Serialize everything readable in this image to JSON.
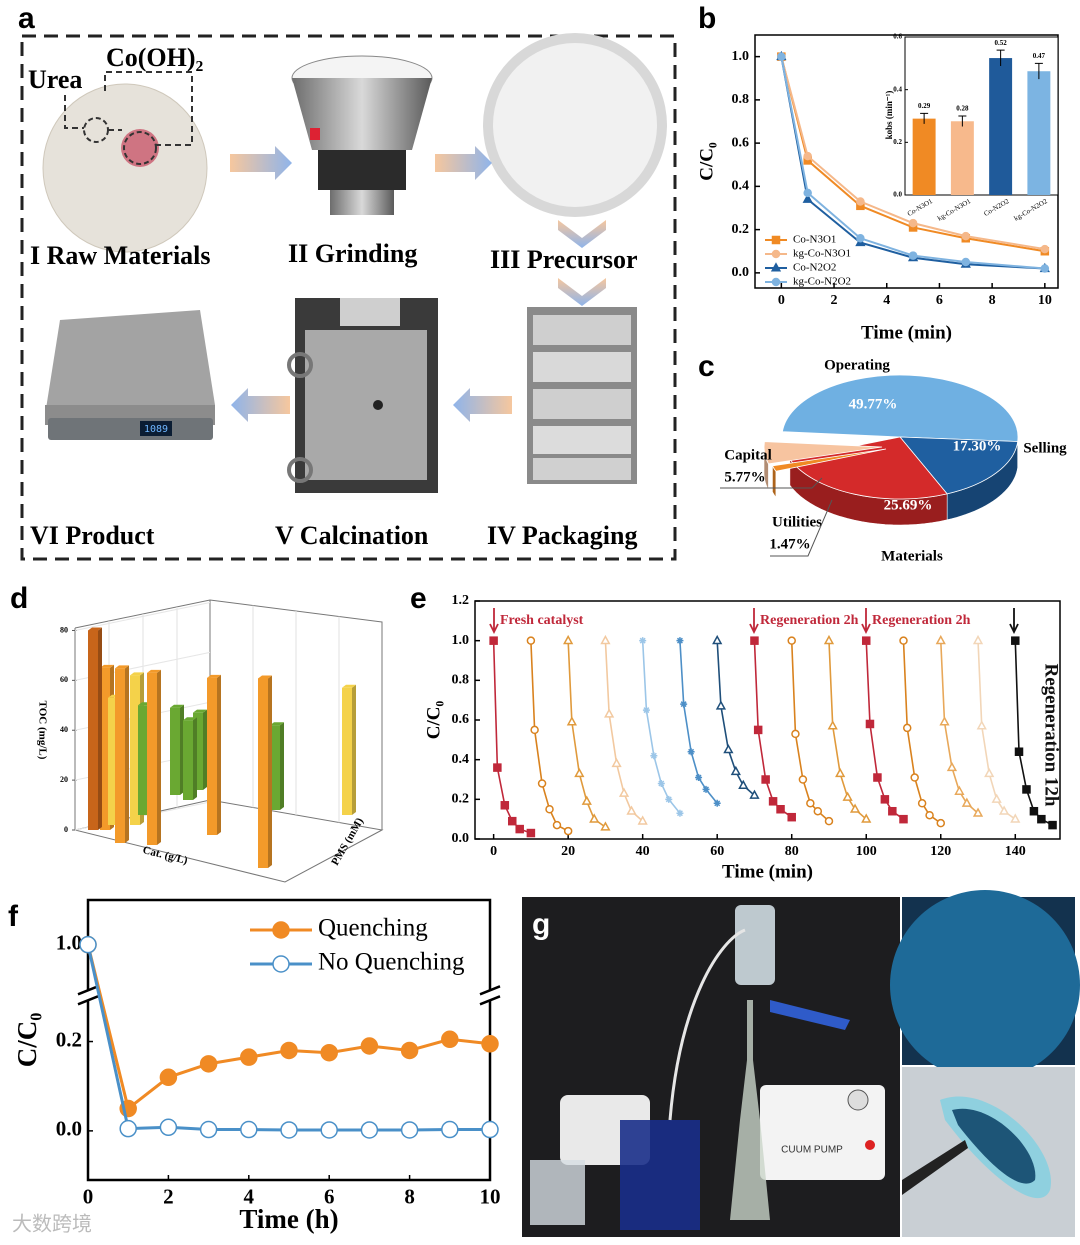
{
  "panel_labels": [
    "a",
    "b",
    "c",
    "d",
    "e",
    "f",
    "g"
  ],
  "panel_a": {
    "urea": "Urea",
    "cooh": "Co(OH)₂",
    "steps": [
      "I Raw Materials",
      "II Grinding",
      "III Precursor",
      "IV Packaging",
      "V Calcination",
      "VI Product"
    ],
    "scale_reading": "1089"
  },
  "panel_g": {
    "pump_label": "CUUM PUMP"
  },
  "watermark": "大数跨境",
  "chart_data": [
    {
      "type": "line",
      "x_label": "Time (min)",
      "y_label": "C/C₀",
      "x": [
        0,
        1,
        3,
        5,
        7,
        10
      ],
      "xlim": [
        -1,
        10.5
      ],
      "xticks": [
        0,
        2,
        4,
        6,
        8,
        10
      ],
      "ylim": [
        -0.07,
        1.1
      ],
      "yticks": [
        {
          "value": 0,
          "label": "0.0"
        },
        0.2,
        0.4,
        0.6,
        0.8,
        {
          "value": 1,
          "label": "1.0"
        }
      ],
      "legend": "lower left",
      "series": [
        {
          "name": "Co-N3O1",
          "color": "#f08a24",
          "marker": "square",
          "values": [
            1.0,
            0.52,
            0.31,
            0.21,
            0.16,
            0.1
          ]
        },
        {
          "name": "kg-Co-N3O1",
          "color": "#f5b88a",
          "marker": "circle",
          "values": [
            1.0,
            0.54,
            0.33,
            0.23,
            0.17,
            0.11
          ]
        },
        {
          "name": "Co-N2O2",
          "color": "#1f5fa0",
          "marker": "triangle",
          "values": [
            1.0,
            0.34,
            0.14,
            0.07,
            0.04,
            0.02
          ]
        },
        {
          "name": "kg-Co-N2O2",
          "color": "#7fb3e0",
          "marker": "circle",
          "values": [
            1.0,
            0.37,
            0.16,
            0.08,
            0.05,
            0.02
          ]
        }
      ]
    },
    {
      "type": "bar",
      "y_label": "kobs (min⁻¹)",
      "categories": [
        "Co-N3O1",
        "kg-Co-N3O1",
        "Co-N2O2",
        "kg-Co-N2O2"
      ],
      "values": [
        0.29,
        0.28,
        0.52,
        0.47
      ],
      "errors": [
        0.02,
        0.02,
        0.03,
        0.03
      ],
      "colors": [
        "#f08a24",
        "#f7b98c",
        "#1f5a9a",
        "#7cb4e2"
      ],
      "ylim": [
        0,
        0.6
      ],
      "yticks": [
        {
          "value": 0,
          "label": "0.0"
        },
        0.2,
        0.4,
        0.6
      ]
    },
    {
      "type": "pie",
      "categories": [
        "Operating",
        "Selling",
        "Materials",
        "Utilities",
        "Capital"
      ],
      "values": [
        49.77,
        17.3,
        25.69,
        1.47,
        5.77
      ],
      "value_labels": [
        "49.77%",
        "17.30%",
        "25.69%",
        "1.47%",
        "5.77%"
      ],
      "colors": [
        "#6fb0e2",
        "#1f5fa0",
        "#d42a2a",
        "#f08a24",
        "#f7c4a0"
      ]
    },
    {
      "type": "bar3d",
      "x_label": "Cat. (g/L)",
      "y_label": "PMS (mM)",
      "z_label": "TOC (mg/L)",
      "zlim": [
        0,
        85
      ],
      "zticks": [
        0,
        20,
        40,
        60,
        80
      ],
      "values": [
        80,
        65,
        70,
        51,
        60,
        44,
        69,
        35,
        32,
        31,
        63,
        76,
        34,
        51
      ],
      "colors": [
        "#c8651a",
        "#f39a2a",
        "#f39a2a",
        "#f4d24a",
        "#f4d24a",
        "#6aa832",
        "#f39a2a",
        "#6aa832",
        "#6aa832",
        "#6aa832",
        "#f39a2a",
        "#f39a2a",
        "#6aa832",
        "#f4d24a"
      ]
    },
    {
      "type": "line",
      "x_label": "Time (min)",
      "y_label": "C/C₀",
      "xlim": [
        -5,
        152
      ],
      "xticks": [
        0,
        20,
        40,
        60,
        80,
        100,
        120,
        140
      ],
      "ylim": [
        0,
        1.2
      ],
      "yticks": [
        {
          "value": 0,
          "label": "0.0"
        },
        0.2,
        0.4,
        0.6,
        0.8,
        {
          "value": 1,
          "label": "1.0"
        },
        1.2
      ],
      "annotations": [
        "Fresh catalyst",
        "Regeneration 2h",
        "Regeneration 2h",
        "Regeneration 12h"
      ],
      "series": [
        {
          "color": "#c0283a",
          "marker": "square",
          "x": [
            0,
            1,
            3,
            5,
            7,
            10
          ],
          "values": [
            1.0,
            0.36,
            0.17,
            0.09,
            0.05,
            0.03
          ]
        },
        {
          "color": "#d9821e",
          "marker": "circle",
          "hollow": true,
          "x": [
            10,
            11,
            13,
            15,
            17,
            20
          ],
          "values": [
            1.0,
            0.55,
            0.28,
            0.15,
            0.07,
            0.04
          ]
        },
        {
          "color": "#e09a3c",
          "marker": "triangle",
          "hollow": true,
          "x": [
            20,
            21,
            23,
            25,
            27,
            30
          ],
          "values": [
            1.0,
            0.59,
            0.33,
            0.19,
            0.1,
            0.06
          ]
        },
        {
          "color": "#f2c9a0",
          "marker": "triangle",
          "hollow": true,
          "x": [
            30,
            31,
            33,
            35,
            37,
            40
          ],
          "values": [
            1.0,
            0.63,
            0.38,
            0.23,
            0.14,
            0.09
          ]
        },
        {
          "color": "#9cc6e8",
          "marker": "star",
          "x": [
            40,
            41,
            43,
            45,
            47,
            50
          ],
          "values": [
            1.0,
            0.65,
            0.42,
            0.28,
            0.2,
            0.13
          ]
        },
        {
          "color": "#4d8fc7",
          "marker": "star",
          "x": [
            50,
            51,
            53,
            55,
            57,
            60
          ],
          "values": [
            1.0,
            0.68,
            0.44,
            0.31,
            0.25,
            0.18
          ]
        },
        {
          "color": "#1f4f7a",
          "marker": "triangle",
          "hollow": true,
          "x": [
            60,
            61,
            63,
            65,
            67,
            70
          ],
          "values": [
            1.0,
            0.67,
            0.45,
            0.34,
            0.27,
            0.22
          ]
        },
        {
          "color": "#c0283a",
          "marker": "square",
          "x": [
            70,
            71,
            73,
            75,
            77,
            80
          ],
          "values": [
            1.0,
            0.55,
            0.3,
            0.19,
            0.15,
            0.11
          ]
        },
        {
          "color": "#d9821e",
          "marker": "circle",
          "hollow": true,
          "x": [
            80,
            81,
            83,
            85,
            87,
            90
          ],
          "values": [
            1.0,
            0.53,
            0.3,
            0.18,
            0.14,
            0.09
          ]
        },
        {
          "color": "#e09a3c",
          "marker": "triangle",
          "hollow": true,
          "x": [
            90,
            91,
            93,
            95,
            97,
            100
          ],
          "values": [
            1.0,
            0.57,
            0.33,
            0.21,
            0.15,
            0.1
          ]
        },
        {
          "color": "#c0283a",
          "marker": "square",
          "x": [
            100,
            101,
            103,
            105,
            107,
            110
          ],
          "values": [
            1.0,
            0.58,
            0.31,
            0.2,
            0.14,
            0.1
          ]
        },
        {
          "color": "#d9821e",
          "marker": "circle",
          "hollow": true,
          "x": [
            110,
            111,
            113,
            115,
            117,
            120
          ],
          "values": [
            1.0,
            0.56,
            0.31,
            0.18,
            0.12,
            0.08
          ]
        },
        {
          "color": "#e8a85a",
          "marker": "triangle",
          "hollow": true,
          "x": [
            120,
            121,
            123,
            125,
            127,
            130
          ],
          "values": [
            1.0,
            0.59,
            0.36,
            0.24,
            0.18,
            0.13
          ]
        },
        {
          "color": "#f2d6b8",
          "marker": "triangle",
          "hollow": true,
          "x": [
            130,
            131,
            133,
            135,
            137,
            140
          ],
          "values": [
            1.0,
            0.57,
            0.33,
            0.2,
            0.14,
            0.1
          ]
        },
        {
          "color": "#111111",
          "marker": "square",
          "x": [
            140,
            141,
            143,
            145,
            147,
            150
          ],
          "values": [
            1.0,
            0.44,
            0.25,
            0.14,
            0.1,
            0.07
          ]
        }
      ]
    },
    {
      "type": "line",
      "x_label": "Time (h)",
      "y_label": "C/C₀",
      "x": [
        0,
        1,
        2,
        3,
        4,
        5,
        6,
        7,
        8,
        9,
        10
      ],
      "xlim": [
        0,
        10
      ],
      "xticks": [
        0,
        2,
        4,
        6,
        8,
        10
      ],
      "ylim": [
        -0.11,
        1.1
      ],
      "ybreak": [
        0.29,
        0.9
      ],
      "yticks": [
        {
          "value": 0,
          "label": "0.0"
        },
        0.2,
        {
          "value": 1,
          "label": "1.0"
        }
      ],
      "legend": "upper right",
      "series": [
        {
          "name": "Quenching",
          "color": "#f08a24",
          "marker": "circle",
          "values": [
            1.0,
            0.05,
            0.12,
            0.15,
            0.165,
            0.18,
            0.175,
            0.19,
            0.18,
            0.205,
            0.195
          ]
        },
        {
          "name": "No Quenching",
          "color": "#4a90c8",
          "marker": "circle",
          "hollow": true,
          "values": [
            1.0,
            0.005,
            0.008,
            0.003,
            0.003,
            0.002,
            0.002,
            0.002,
            0.002,
            0.003,
            0.003
          ]
        }
      ]
    }
  ]
}
